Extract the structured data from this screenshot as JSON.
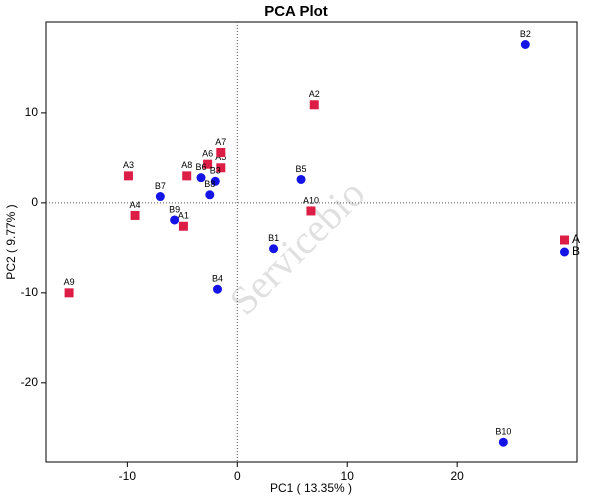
{
  "chart_data": {
    "type": "scatter",
    "title": "PCA Plot",
    "x_label": "PC1 ( 13.35% )",
    "y_label": "PC2 ( 9.77% )",
    "watermark": "Servicebio",
    "xlim": [
      -17.4,
      30.9
    ],
    "ylim": [
      -28.8,
      20.1
    ],
    "xticks": [
      -10,
      0,
      10,
      20
    ],
    "yticks": [
      -20,
      -10,
      0,
      10
    ],
    "zero_lines": true,
    "legend": "right",
    "series": [
      {
        "name": "A",
        "color": "#dc1e46",
        "marker": "square",
        "labels": [
          "A1",
          "A2",
          "A3",
          "A4",
          "A5",
          "A6",
          "A7",
          "A8",
          "A9",
          "A10"
        ],
        "x": [
          -4.9,
          7.0,
          -9.9,
          -9.3,
          -1.5,
          -2.7,
          -1.5,
          -4.6,
          -15.3,
          6.7
        ],
        "values": [
          -2.6,
          10.9,
          3.0,
          -1.4,
          3.9,
          4.3,
          5.6,
          3.0,
          -10.0,
          -0.9
        ]
      },
      {
        "name": "B",
        "color": "#1414e6",
        "marker": "circle",
        "labels": [
          "B1",
          "B2",
          "B3",
          "B4",
          "B5",
          "B6",
          "B7",
          "B8",
          "B9",
          "B10"
        ],
        "x": [
          3.3,
          26.2,
          -2.0,
          -1.8,
          5.8,
          -3.3,
          -7.0,
          -2.5,
          -5.7,
          24.2
        ],
        "values": [
          -5.1,
          17.6,
          2.4,
          -9.6,
          2.6,
          2.8,
          0.7,
          0.9,
          -1.9,
          -26.6
        ]
      }
    ]
  }
}
